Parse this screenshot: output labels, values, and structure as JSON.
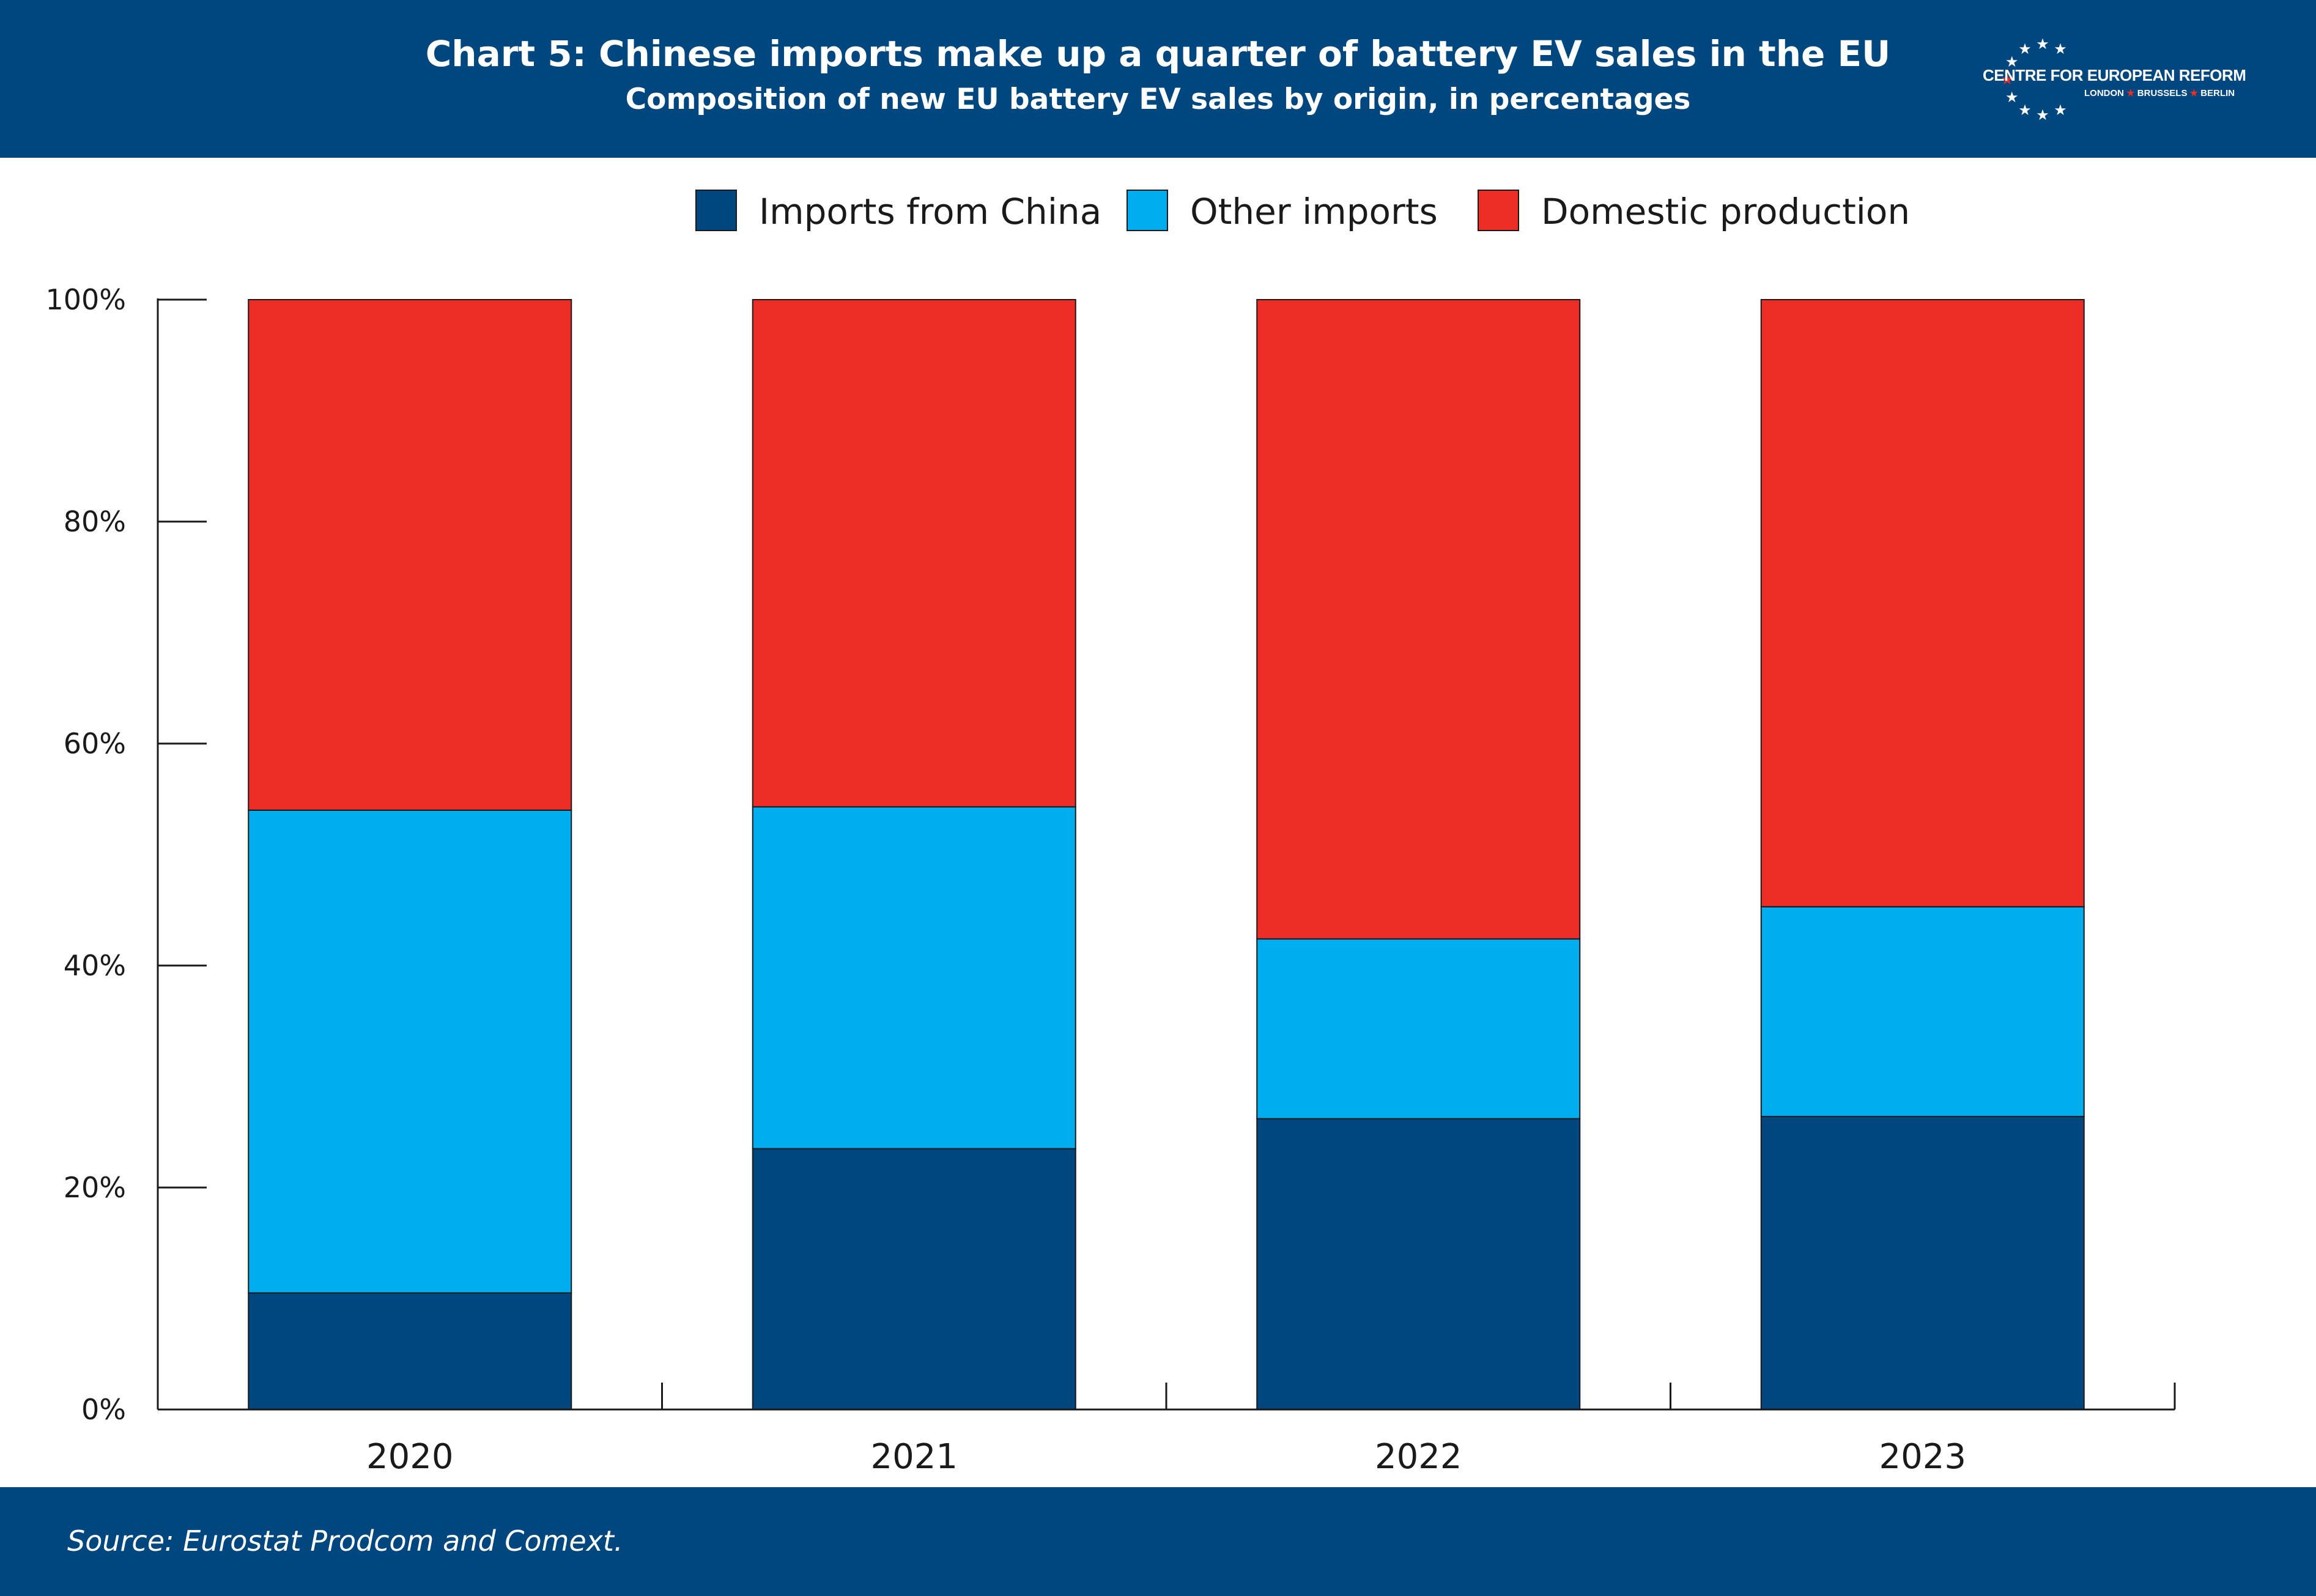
{
  "header": {
    "title": "Chart 5: Chinese imports make up a quarter of battery EV sales in the EU",
    "subtitle": "Composition of new EU battery EV sales by origin, in percentages",
    "logo_name": "CENTRE FOR EUROPEAN REFORM",
    "logo_cities": [
      "LONDON",
      "BRUSSELS",
      "BERLIN"
    ],
    "logo_icon": "star-circle-icon"
  },
  "footer": {
    "source": "Source: Eurostat Prodcom and Comext."
  },
  "colors": {
    "header_bg": "#00467f",
    "china": "#00467f",
    "other": "#00adef",
    "domestic": "#ee2d27",
    "logo_star_accent": "#e8302a"
  },
  "chart_data": {
    "type": "bar",
    "stacked": true,
    "title": "Chart 5: Chinese imports make up a quarter of battery EV sales in the EU",
    "subtitle": "Composition of new EU battery EV sales by origin, in percentages",
    "xlabel": "",
    "ylabel": "",
    "categories": [
      "2020",
      "2021",
      "2022",
      "2023"
    ],
    "series": [
      {
        "name": "Imports from China",
        "color": "#00467f",
        "values": [
          10.5,
          23.5,
          26.2,
          26.4
        ]
      },
      {
        "name": "Other imports",
        "color": "#00adef",
        "values": [
          43.5,
          30.8,
          16.2,
          18.9
        ]
      },
      {
        "name": "Domestic production",
        "color": "#ee2d27",
        "values": [
          46.0,
          45.7,
          57.6,
          54.7
        ]
      }
    ],
    "ylim": [
      0,
      100
    ],
    "yticks": [
      0,
      20,
      40,
      60,
      80,
      100
    ],
    "ytick_labels": [
      "0%",
      "20%",
      "40%",
      "60%",
      "80%",
      "100%"
    ],
    "legend_position": "top-center",
    "grid": false
  }
}
